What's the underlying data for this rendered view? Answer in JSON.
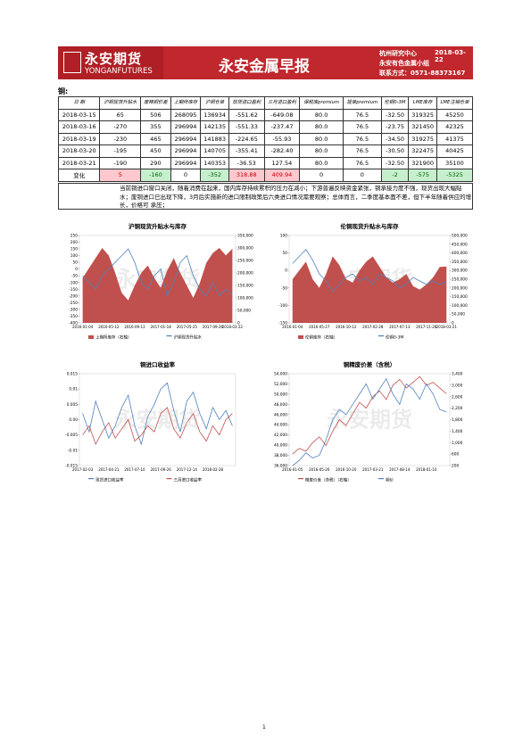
{
  "header": {
    "logo_cn": "永安期货",
    "logo_en": "YONGANFUTURES",
    "title": "永安金属早报",
    "center": "杭州研究中心",
    "date": "2018-03-22",
    "group": "永安有色金属小组",
    "contact": "联系方式：0571-88373167"
  },
  "section": "铜:",
  "table": {
    "columns": [
      "日 期",
      "沪铜现货升贴水",
      "废精铜价差",
      "上期所库存",
      "沪铜仓单",
      "现货进口盈利",
      "三月进口盈利",
      "保税库premium",
      "提单premium",
      "伦铜0-3M",
      "LME库存",
      "LME注销仓单"
    ],
    "rows": [
      [
        "2018-03-15",
        "65",
        "506",
        "268095",
        "136934",
        "-551.62",
        "-649.08",
        "80.0",
        "76.5",
        "-32.50",
        "319325",
        "45250"
      ],
      [
        "2018-03-16",
        "-270",
        "355",
        "296994",
        "142135",
        "-551.33",
        "-237.47",
        "80.0",
        "76.5",
        "-23.75",
        "321450",
        "42325"
      ],
      [
        "2018-03-19",
        "-230",
        "465",
        "296994",
        "141883",
        "-224.65",
        "-55.93",
        "80.0",
        "76.5",
        "-34.50",
        "319275",
        "41375"
      ],
      [
        "2018-03-20",
        "-195",
        "450",
        "296994",
        "140705",
        "-355.41",
        "-282.40",
        "80.0",
        "76.5",
        "-30.50",
        "322475",
        "40425"
      ],
      [
        "2018-03-21",
        "-190",
        "290",
        "296994",
        "140353",
        "-36.53",
        "127.54",
        "80.0",
        "76.5",
        "-32.50",
        "321900",
        "35100"
      ]
    ],
    "change_row": [
      "变化",
      "5",
      "-160",
      "0",
      "-352",
      "318.88",
      "409.94",
      "0",
      "0",
      "-2",
      "-575",
      "-5325"
    ]
  },
  "comment": "当前铜进口窗口关闭，随着消费在起来，国内库存持续累积的压力在减小；下游普遍反映资金紧张，铜承接力度不强，现货出现大幅贴水；废铜进口已出现下降，3月后实施新的进口限制政策后六类进口情况需要观察；总体而言，二季度基本面不差，但下半年随着供应的增长，价格可 承压；",
  "watermark": "永安期货",
  "page_number": "1",
  "chart_data": [
    {
      "type": "combo",
      "title": "沪铜现货升贴水与库存",
      "categories": [
        "2016-01-04",
        null,
        null,
        null,
        "2016-05-12",
        null,
        null,
        null,
        "2016-09-13",
        null,
        null,
        null,
        "2017-01-18",
        null,
        null,
        null,
        "2017-05-25",
        null,
        null,
        null,
        "2017-09-26",
        null,
        null,
        "2018-03-22"
      ],
      "ylim": [
        -400,
        250
      ],
      "yticks": [
        -400,
        -350,
        -300,
        -250,
        -200,
        -150,
        -100,
        -50,
        0,
        50,
        100,
        150,
        200,
        250
      ],
      "y2lim": [
        0,
        350000
      ],
      "y2ticks": [
        0,
        {
          "value": 50000,
          "label": "50,000"
        },
        {
          "value": 100000,
          "label": "100,000"
        },
        {
          "value": 150000,
          "label": "150,000"
        },
        {
          "value": 200000,
          "label": "200,000"
        },
        {
          "value": 250000,
          "label": "250,000"
        },
        {
          "value": 300000,
          "label": "300,000"
        },
        {
          "value": 350000,
          "label": "350,000"
        }
      ],
      "series": [
        {
          "name": "上期所库存（右轴）",
          "kind": "area",
          "axis": "y2",
          "color": "#c0504d",
          "values": [
            180000,
            220000,
            260000,
            300000,
            270000,
            200000,
            120000,
            90000,
            150000,
            200000,
            230000,
            180000,
            140000,
            210000,
            260000,
            200000,
            150000,
            100000,
            160000,
            240000,
            280000,
            300000,
            270000,
            296994
          ]
        },
        {
          "name": "沪铜现货升贴水",
          "kind": "line",
          "color": "#4f81bd",
          "values": [
            -50,
            -100,
            -150,
            -50,
            0,
            50,
            100,
            150,
            50,
            -100,
            -150,
            -50,
            0,
            -200,
            -100,
            50,
            100,
            -50,
            -150,
            -200,
            -100,
            -200,
            -150,
            -190
          ]
        }
      ]
    },
    {
      "type": "combo",
      "title": "伦铜现货升贴水与库存",
      "categories": [
        "2016-01-04",
        null,
        null,
        null,
        "2016-05-27",
        null,
        null,
        null,
        "2016-10-12",
        null,
        null,
        null,
        "2017-02-28",
        null,
        null,
        null,
        "2017-07-13",
        null,
        null,
        null,
        "2017-11-28",
        null,
        null,
        "2018-03-21"
      ],
      "ylim": [
        -150,
        100
      ],
      "yticks": [
        -150,
        -100,
        -50,
        0,
        50,
        100
      ],
      "y2lim": [
        0,
        500000
      ],
      "y2ticks": [
        0,
        {
          "value": 50000,
          "label": "50,000"
        },
        {
          "value": 100000,
          "label": "100,000"
        },
        {
          "value": 150000,
          "label": "150,000"
        },
        {
          "value": 200000,
          "label": "200,000"
        },
        {
          "value": 250000,
          "label": "250,000"
        },
        {
          "value": 300000,
          "label": "300,000"
        },
        {
          "value": 350000,
          "label": "350,000"
        },
        {
          "value": 400000,
          "label": "400,000"
        },
        {
          "value": 450000,
          "label": "450,000"
        },
        {
          "value": 500000,
          "label": "500,000"
        }
      ],
      "series": [
        {
          "name": "伦铜库存（右轴）",
          "kind": "area",
          "axis": "y2",
          "color": "#c0504d",
          "values": [
            250000,
            300000,
            350000,
            250000,
            200000,
            280000,
            380000,
            330000,
            250000,
            230000,
            300000,
            350000,
            380000,
            320000,
            260000,
            230000,
            250000,
            280000,
            210000,
            190000,
            220000,
            260000,
            320000,
            321900
          ]
        },
        {
          "name": "伦铜0-3M",
          "kind": "line",
          "color": "#4f81bd",
          "values": [
            20,
            40,
            60,
            30,
            -10,
            -30,
            -60,
            -40,
            -20,
            -10,
            -30,
            -20,
            -40,
            -10,
            -20,
            -30,
            -50,
            -40,
            -20,
            -30,
            -40,
            -30,
            -40,
            -32.5
          ]
        }
      ]
    },
    {
      "type": "combo",
      "title": "铜进口收益率",
      "categories": [
        "2017-02-03",
        null,
        null,
        null,
        "2017-04-21",
        null,
        null,
        null,
        "2017-07-10",
        null,
        null,
        null,
        "2017-09-26",
        null,
        null,
        null,
        "2017-12-14",
        null,
        null,
        null,
        "2018-02-28",
        null,
        null,
        null
      ],
      "ylim": [
        -0.015,
        0.015
      ],
      "yticks": [
        -0.015,
        -0.01,
        -0.005,
        {
          "value": 0,
          "label": "0.00"
        },
        0.005,
        0.01,
        0.015
      ],
      "series": [
        {
          "name": "现货进口收益率",
          "kind": "line",
          "color": "#4f81bd",
          "values": [
            0.002,
            -0.004,
            0.006,
            0.0,
            -0.006,
            -0.002,
            0.004,
            0.008,
            -0.002,
            -0.008,
            0.001,
            0.005,
            0.01,
            0.012,
            0.003,
            -0.004,
            0.006,
            0.009,
            0.002,
            -0.003,
            0.004,
            0.0,
            0.003,
            -0.002
          ]
        },
        {
          "name": "三月进口收益率",
          "kind": "line",
          "color": "#c0504d",
          "values": [
            -0.005,
            -0.002,
            -0.008,
            -0.004,
            -0.001,
            -0.006,
            -0.003,
            0.0,
            -0.007,
            -0.005,
            -0.002,
            -0.004,
            0.002,
            0.004,
            -0.003,
            -0.006,
            -0.001,
            0.002,
            -0.004,
            -0.007,
            -0.002,
            -0.005,
            0.0,
            0.002
          ]
        }
      ]
    },
    {
      "type": "combo",
      "title": "铜精废价差（含税）",
      "categories": [
        "2016-01-05",
        null,
        null,
        null,
        "2016-05-26",
        null,
        null,
        null,
        "2016-10-20",
        null,
        null,
        null,
        "2017-03-21",
        null,
        null,
        null,
        "2017-08-14",
        null,
        null,
        null,
        "2018-01-10",
        null,
        null,
        null
      ],
      "ylim": [
        36000,
        54000
      ],
      "yticks": [
        {
          "value": 36000,
          "label": "36,000"
        },
        {
          "value": 38000,
          "label": "38,000"
        },
        {
          "value": 40000,
          "label": "40,000"
        },
        {
          "value": 42000,
          "label": "42,000"
        },
        {
          "value": 44000,
          "label": "44,000"
        },
        {
          "value": 46000,
          "label": "46,000"
        },
        {
          "value": 48000,
          "label": "48,000"
        },
        {
          "value": 50000,
          "label": "50,000"
        },
        {
          "value": 52000,
          "label": "52,000"
        },
        {
          "value": 54000,
          "label": "54,000"
        }
      ],
      "y2lim": [
        200,
        3400
      ],
      "y2ticks": [
        200,
        600,
        {
          "value": 1000,
          "label": "1,000"
        },
        {
          "value": 1400,
          "label": "1,400"
        },
        {
          "value": 1800,
          "label": "1,800"
        },
        {
          "value": 2200,
          "label": "2,200"
        },
        {
          "value": 2600,
          "label": "2,600"
        },
        {
          "value": 3000,
          "label": "3,000"
        },
        {
          "value": 3400,
          "label": "3,400"
        }
      ],
      "series": [
        {
          "name": "精废价差（含税）（右轴）",
          "kind": "line",
          "axis": "y2",
          "color": "#c0504d",
          "values": [
            600,
            800,
            700,
            1000,
            1200,
            900,
            1400,
            1800,
            1600,
            2000,
            2400,
            2200,
            2600,
            2800,
            2500,
            3000,
            3200,
            2900,
            3100,
            3300,
            3000,
            3100,
            2900,
            2700
          ]
        },
        {
          "name": "铜价",
          "kind": "line",
          "color": "#4f81bd",
          "values": [
            36000,
            37000,
            38500,
            37500,
            38000,
            41000,
            45000,
            47000,
            46000,
            48000,
            50000,
            52000,
            49000,
            51000,
            53000,
            50000,
            48000,
            52000,
            51000,
            49000,
            52000,
            50000,
            47000,
            46500
          ]
        }
      ]
    }
  ]
}
